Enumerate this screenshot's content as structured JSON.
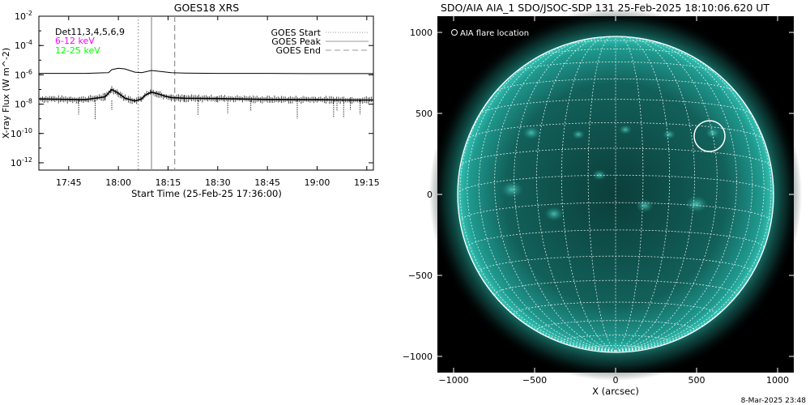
{
  "footer_timestamp": "8-Mar-2025 23:48",
  "goes": {
    "title": "GOES18 XRS",
    "legend_left": [
      {
        "text": "Det11,3,4,5,6,9",
        "color": "#000000"
      },
      {
        "text": "6-12 keV",
        "color": "#ff00ff"
      },
      {
        "text": "12-25 keV",
        "color": "#00ff00"
      }
    ],
    "legend_right": [
      {
        "text": "GOES Start",
        "dash": "dotted",
        "color": "#999999"
      },
      {
        "text": "GOES Peak",
        "dash": "solid",
        "color": "#999999"
      },
      {
        "text": "GOES End",
        "dash": "dashed",
        "color": "#999999"
      }
    ]
  },
  "aia": {
    "title": "SDO/AIA AIA_1 SDO/JSOC-SDP 131 25-Feb-2025 18:10:06.620 UT",
    "legend": "AIA flare location",
    "accent_color": "#1fa89a"
  },
  "chart_data": [
    {
      "type": "line",
      "scale_y": "log",
      "title": "GOES18 XRS",
      "xlabel": "Start Time (25-Feb-25 17:36:00)",
      "ylabel": "X-ray Flux (W m^-2)",
      "x_ticks": [
        "17:45",
        "18:00",
        "18:15",
        "18:30",
        "18:45",
        "19:00",
        "19:15"
      ],
      "y_ticks": [
        "10^-2",
        "10^-4",
        "10^-6",
        "10^-8",
        "10^-10",
        "10^-12"
      ],
      "xlim": [
        "17:36",
        "19:17"
      ],
      "ylim_exp": [
        -12.5,
        -2
      ],
      "markers": {
        "start": "18:06",
        "peak": "18:10",
        "end": "18:17"
      },
      "series": [
        {
          "x": [
            "17:36",
            "17:50",
            "17:57",
            "17:58",
            "18:00",
            "18:02",
            "18:05",
            "18:07",
            "18:10",
            "18:13",
            "18:16",
            "18:20",
            "18:30",
            "18:45",
            "19:00",
            "19:10",
            "19:17"
          ],
          "y_exp": [
            -5.9,
            -5.9,
            -5.85,
            -5.65,
            -5.55,
            -5.6,
            -5.82,
            -5.85,
            -5.7,
            -5.78,
            -5.85,
            -5.88,
            -5.9,
            -5.9,
            -5.92,
            -5.92,
            -5.92
          ]
        },
        {
          "x": [
            "17:36",
            "17:50",
            "17:56",
            "17:58",
            "18:00",
            "18:02",
            "18:05",
            "18:07",
            "18:08",
            "18:10",
            "18:12",
            "18:14",
            "18:16",
            "18:20",
            "18:30",
            "18:45",
            "19:00",
            "19:10",
            "19:17"
          ],
          "y_exp": [
            -7.65,
            -7.7,
            -7.5,
            -7.0,
            -7.25,
            -7.6,
            -7.78,
            -7.65,
            -7.4,
            -7.18,
            -7.3,
            -7.45,
            -7.55,
            -7.6,
            -7.62,
            -7.68,
            -7.7,
            -7.72,
            -7.72
          ]
        }
      ]
    },
    {
      "type": "heatmap",
      "title": "SDO/AIA AIA_1 SDO/JSOC-SDP 131 25-Feb-2025 18:10:06.620 UT",
      "xlabel": "X (arcsec)",
      "ylabel": "",
      "x_ticks": [
        -1000,
        -500,
        0,
        500,
        1000
      ],
      "y_ticks": [
        -1000,
        -500,
        0,
        500,
        1000
      ],
      "xlim": [
        -1100,
        1100
      ],
      "ylim": [
        -1100,
        1100
      ],
      "solar_radius_arcsec": 975,
      "flare_location": {
        "x": 580,
        "y": 360
      }
    }
  ]
}
